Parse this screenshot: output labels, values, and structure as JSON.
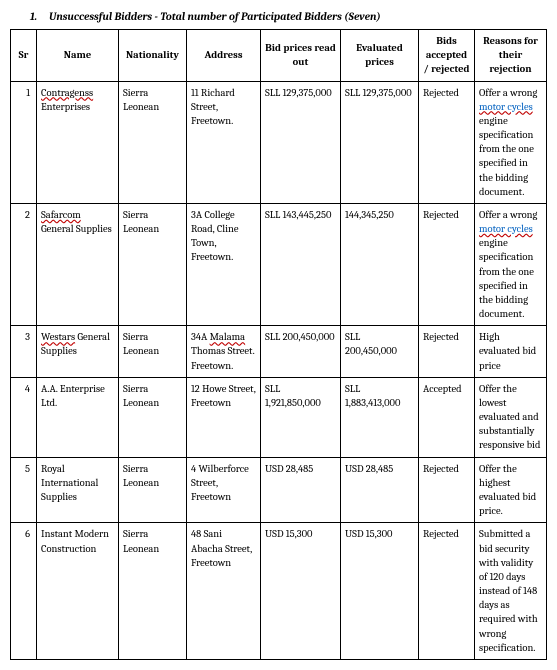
{
  "heading": {
    "number": "1.",
    "text": "Unsuccessful Bidders - Total number of Participated Bidders (Seven)"
  },
  "columns": {
    "sr": "Sr",
    "name": "Name",
    "nationality": "Nationality",
    "address": "Address",
    "bid_prices": "Bid prices read out",
    "evaluated": "Evaluated prices",
    "accepted": "Bids accepted / rejected",
    "reason": "Reasons for their rejection"
  },
  "rows": [
    {
      "sr": "1",
      "name_pre": "Contragenss",
      "name_post": " Enterprises",
      "nationality": "Sierra Leonean",
      "address": "11 Richard Street, Freetown.",
      "bid": "SLL 129,375,000",
      "eval": "SLL 129,375,000",
      "acc": "Rejected",
      "reason_pre": "Offer a wrong ",
      "reason_link": "motor cycles",
      "reason_post": " engine specification from the one specified in the bidding document."
    },
    {
      "sr": "2",
      "name_pre": "Safarcom",
      "name_post": " General Supplies",
      "nationality": "Sierra Leonean",
      "address": "3A College Road, Cline Town, Freetown.",
      "bid": "SLL 143,445,250",
      "eval": "144,345,250",
      "acc": "Rejected",
      "reason_pre": "Offer a wrong ",
      "reason_link": "motor cycles",
      "reason_post": " engine specification from the one specified in the bidding document."
    },
    {
      "sr": "3",
      "name_pre": "Westars",
      "name_post": " General Supplies",
      "nationality": "Sierra Leonean",
      "address_pre": "34A ",
      "address_mid": "Malama",
      "address_post": " Thomas Street. Freetown.",
      "bid": "SLL 200,450,000",
      "eval": "SLL 200,450,000",
      "acc": "Rejected",
      "reason": "High evaluated bid price"
    },
    {
      "sr": "4",
      "name": "A.A. Enterprise Ltd.",
      "nationality": "Sierra Leonean",
      "address": "12 Howe Street, Freetown",
      "bid": "SLL 1,921,850,000",
      "eval": "SLL 1,883,413,000",
      "acc": "Accepted",
      "reason": "Offer the lowest evaluated and substantially responsive bid"
    },
    {
      "sr": "5",
      "name": "Royal International Supplies",
      "nationality": "Sierra Leonean",
      "address": "4 Wilberforce Street, Freetown",
      "bid": "USD 28,485",
      "eval": "USD 28,485",
      "acc": "Rejected",
      "reason": "Offer the highest evaluated bid price."
    },
    {
      "sr": "6",
      "name": "Instant Modern Construction",
      "nationality": "Sierra Leonean",
      "address": "48 Sani Abacha Street, Freetown",
      "bid": "USD 15,300",
      "eval": "USD 15,300",
      "acc": "Rejected",
      "reason": "Submitted a bid security with validity of 120 days instead of 148 days as required with wrong specification."
    }
  ]
}
